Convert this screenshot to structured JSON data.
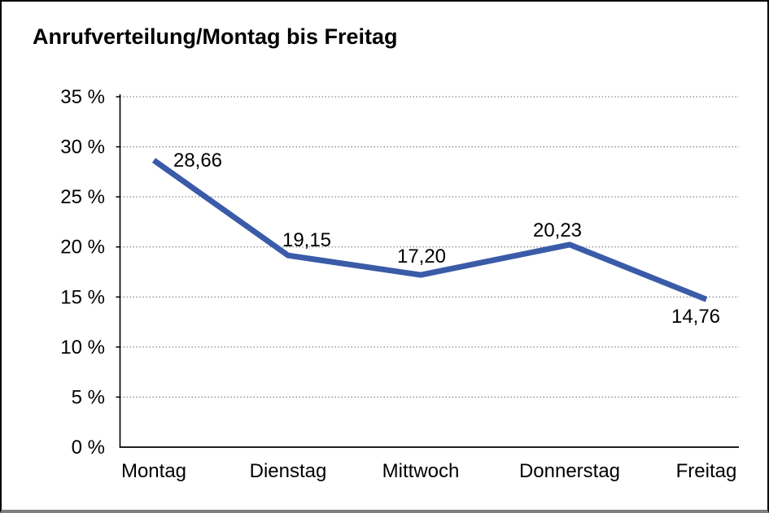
{
  "chart_data": {
    "type": "line",
    "title": "Anrufverteilung/Montag bis Freitag",
    "categories": [
      "Montag",
      "Dienstag",
      "Mittwoch",
      "Donnerstag",
      "Freitag"
    ],
    "values": [
      28.66,
      19.15,
      17.2,
      20.23,
      14.76
    ],
    "value_labels": [
      "28,66",
      "19,15",
      "17,20",
      "20,23",
      "14,76"
    ],
    "y_ticks": [
      "0 %",
      "5 %",
      "10 %",
      "15 %",
      "20 %",
      "25 %",
      "30 %",
      "35 %"
    ],
    "xlabel": "",
    "ylabel": "",
    "ylim": [
      0,
      35
    ],
    "y_step": 5,
    "grid": "horizontal-dotted",
    "legend": "none",
    "colors": {
      "line": "#3A5BA8",
      "axis": "#000000",
      "gridline": "#8a8a8a",
      "text": "#000000",
      "background": "#ffffff",
      "frame_border": "#000000",
      "frame_shadow": "#7f7f7f"
    }
  }
}
